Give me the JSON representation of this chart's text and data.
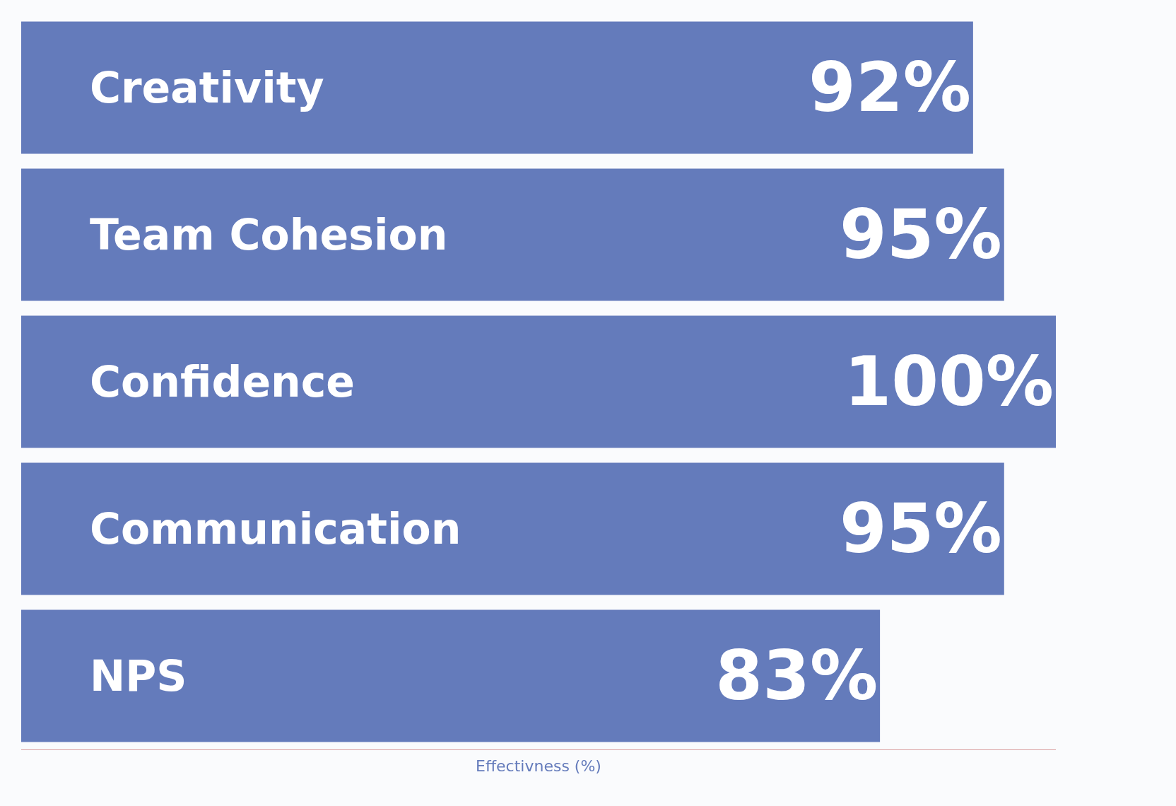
{
  "chart_data": {
    "type": "bar",
    "orientation": "horizontal",
    "xlabel": "Effectivness (%)",
    "categories": [
      "Creativity",
      "Team Cohesion",
      "Confidence",
      "Communication",
      "NPS"
    ],
    "values": [
      92,
      95,
      100,
      95,
      83
    ],
    "value_labels": [
      "92%",
      "95%",
      "100%",
      "95%",
      "83%"
    ],
    "color": "#647bbb",
    "xlim": [
      0,
      100
    ],
    "tick_labels": false,
    "legend": false
  }
}
